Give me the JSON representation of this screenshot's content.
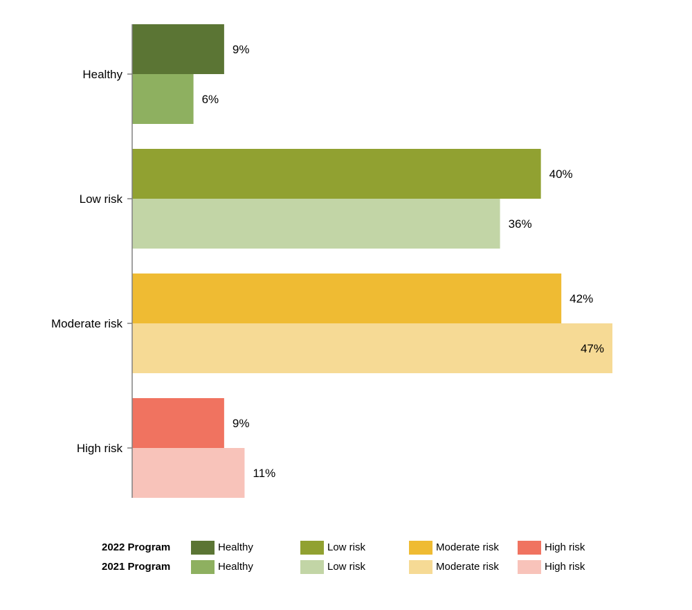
{
  "chart_data": {
    "type": "bar",
    "orientation": "horizontal",
    "categories": [
      "Healthy",
      "Low risk",
      "Moderate risk",
      "High risk"
    ],
    "series": [
      {
        "name": "2022 Program",
        "values": [
          9,
          40,
          42,
          9
        ],
        "colors": [
          "#5b7534",
          "#91a131",
          "#efbb33",
          "#f07360"
        ],
        "labels": [
          "9%",
          "40%",
          "42%",
          "9%"
        ]
      },
      {
        "name": "2021 Program",
        "values": [
          6,
          36,
          47,
          11
        ],
        "colors": [
          "#8eb060",
          "#c2d5a6",
          "#f6da95",
          "#f8c3ba"
        ],
        "labels": [
          "6%",
          "36%",
          "47%",
          "11%"
        ]
      }
    ],
    "xlim": [
      0,
      47
    ],
    "value_unit": "%",
    "grid": false,
    "legend_position": "bottom"
  },
  "legend": {
    "rows": [
      {
        "title": "2022 Program",
        "items": [
          {
            "label": "Healthy",
            "color": "#5b7534"
          },
          {
            "label": "Low risk",
            "color": "#91a131"
          },
          {
            "label": "Moderate risk",
            "color": "#efbb33"
          },
          {
            "label": "High risk",
            "color": "#f07360"
          }
        ]
      },
      {
        "title": "2021 Program",
        "items": [
          {
            "label": "Healthy",
            "color": "#8eb060"
          },
          {
            "label": "Low risk",
            "color": "#c2d5a6"
          },
          {
            "label": "Moderate risk",
            "color": "#f6da95"
          },
          {
            "label": "High risk",
            "color": "#f8c3ba"
          }
        ]
      }
    ]
  },
  "axis": {
    "color": "#808080"
  }
}
